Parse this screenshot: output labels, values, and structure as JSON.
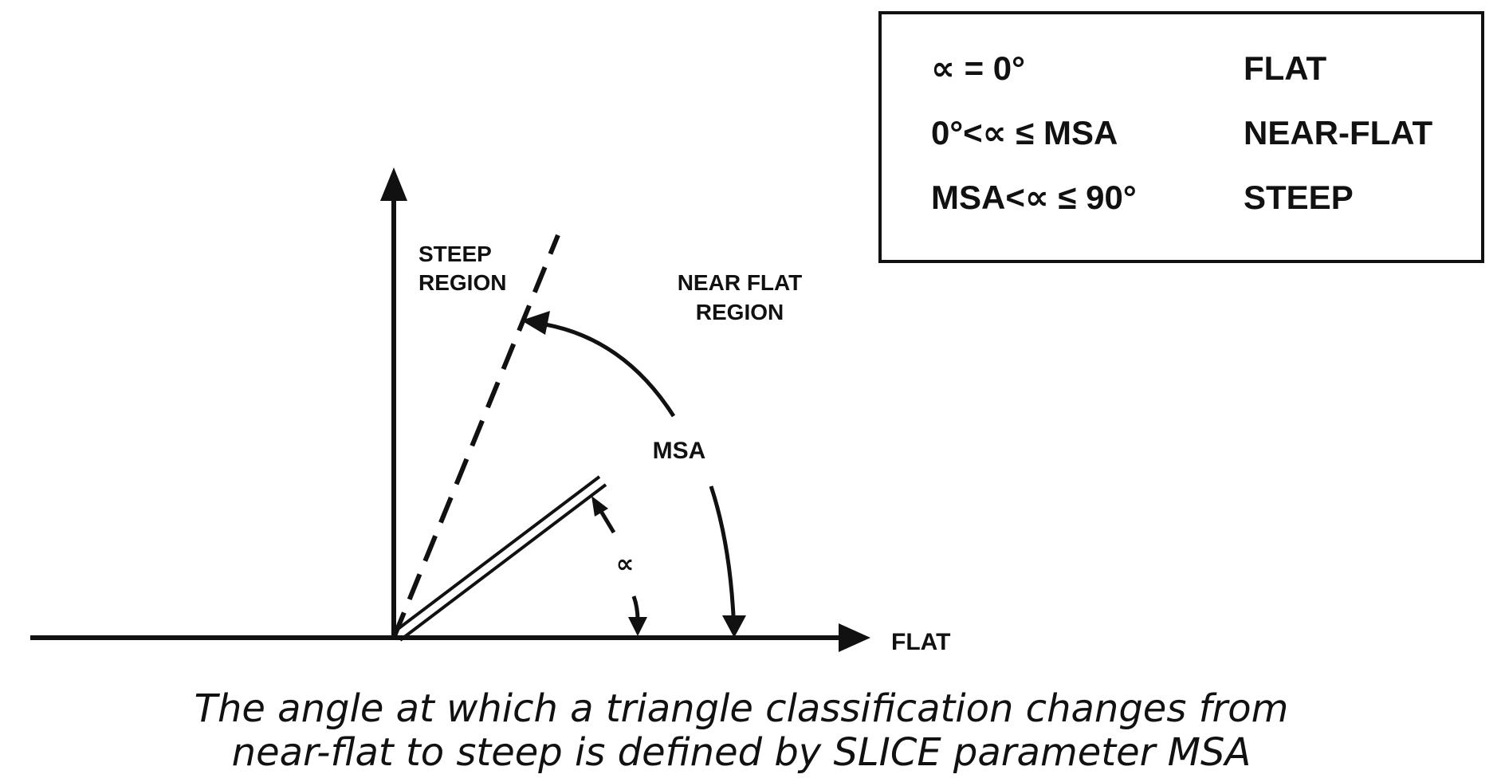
{
  "diagram": {
    "labels": {
      "steep_region_line1": "STEEP",
      "steep_region_line2": "REGION",
      "near_flat_line1": "NEAR FLAT",
      "near_flat_line2": "REGION",
      "msa": "MSA",
      "alpha": "∝",
      "flat": "FLAT"
    },
    "legend": [
      {
        "condition": "∝ = 0°",
        "class": "FLAT"
      },
      {
        "condition": "0°<∝ ≤ MSA",
        "class": "NEAR-FLAT"
      },
      {
        "condition": "MSA<∝ ≤ 90°",
        "class": "STEEP"
      }
    ],
    "caption": {
      "line1": "The angle at which a triangle classification changes from",
      "line2": "near-flat to steep is defined by SLICE parameter MSA"
    }
  }
}
